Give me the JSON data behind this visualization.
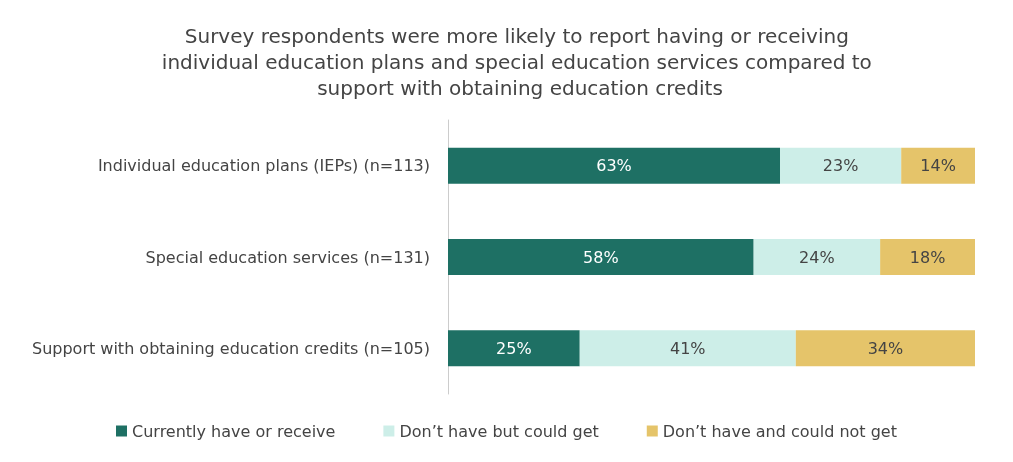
{
  "chart_data": {
    "type": "bar",
    "orientation": "horizontal",
    "stacked": true,
    "title": "Survey respondents were more likely to report having or receiving individual education plans and special education services compared to support with obtaining education credits",
    "categories": [
      "Individual education plans (IEPs) (n=113)",
      "Special education services (n=131)",
      "Support with obtaining education credits (n=105)"
    ],
    "series": [
      {
        "name": "Currently have or receive",
        "color": "#1e7064",
        "values": [
          63,
          58,
          25
        ],
        "value_labels": [
          "63%",
          "58%",
          "25%"
        ]
      },
      {
        "name": "Don’t have but could get",
        "color": "#cdeee8",
        "values": [
          23,
          24,
          41
        ],
        "value_labels": [
          "23%",
          "24%",
          "41%"
        ]
      },
      {
        "name": "Don’t have and could not get",
        "color": "#e5c46a",
        "values": [
          14,
          18,
          34
        ],
        "value_labels": [
          "14%",
          "18%",
          "34%"
        ]
      }
    ],
    "legend": "bottom",
    "grid": false
  }
}
